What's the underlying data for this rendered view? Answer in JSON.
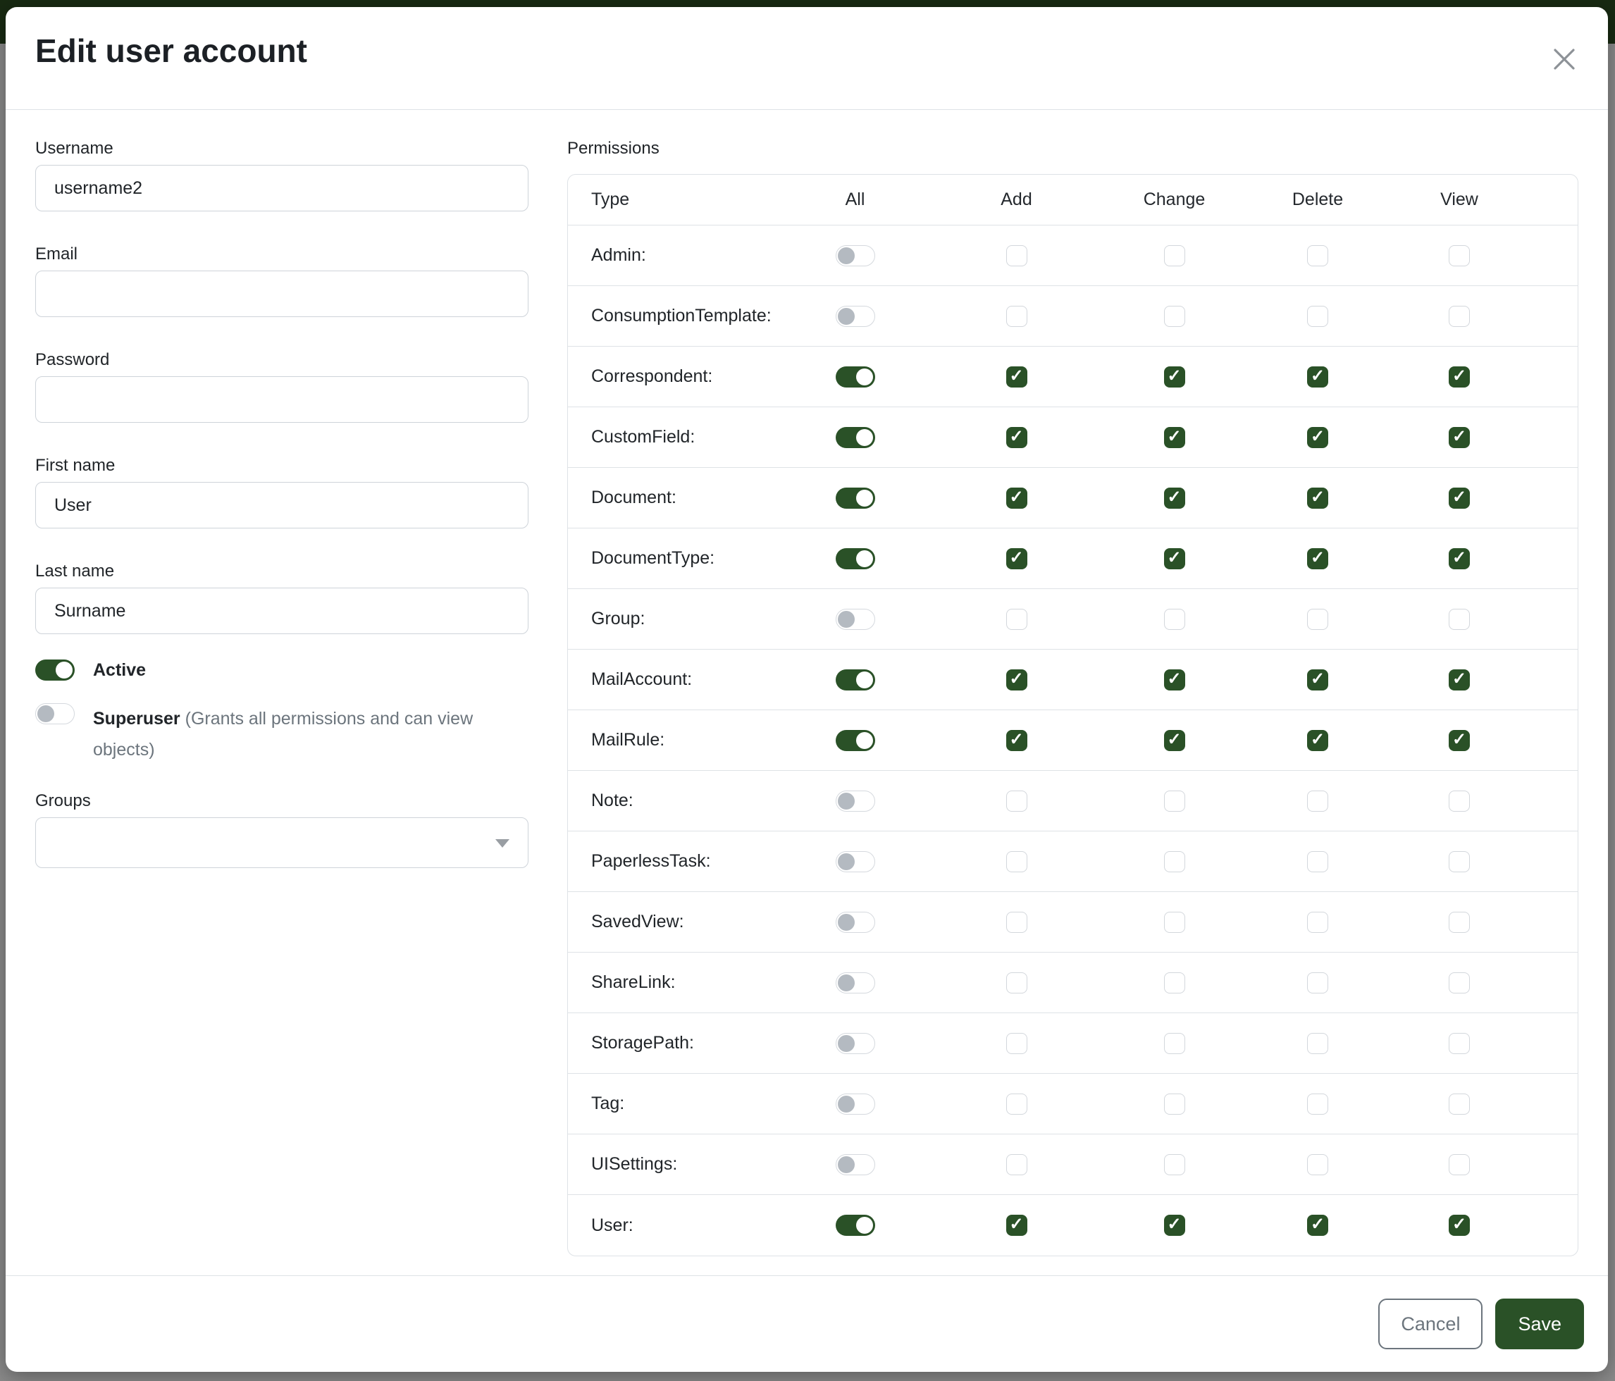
{
  "modal": {
    "title": "Edit user account"
  },
  "form": {
    "username": {
      "label": "Username",
      "value": "username2"
    },
    "email": {
      "label": "Email",
      "value": ""
    },
    "password": {
      "label": "Password",
      "value": ""
    },
    "first_name": {
      "label": "First name",
      "value": "User"
    },
    "last_name": {
      "label": "Last name",
      "value": "Surname"
    },
    "active": {
      "label": "Active",
      "enabled": true
    },
    "superuser": {
      "label": "Superuser",
      "hint": "(Grants all permissions and can view objects)",
      "enabled": false
    },
    "groups": {
      "label": "Groups",
      "value": ""
    }
  },
  "permissions": {
    "label": "Permissions",
    "columns": [
      "Type",
      "All",
      "Add",
      "Change",
      "Delete",
      "View"
    ],
    "rows": [
      {
        "type": "Admin:",
        "all": false,
        "add": false,
        "change": false,
        "delete": false,
        "view": false
      },
      {
        "type": "ConsumptionTemplate:",
        "all": false,
        "add": false,
        "change": false,
        "delete": false,
        "view": false
      },
      {
        "type": "Correspondent:",
        "all": true,
        "add": true,
        "change": true,
        "delete": true,
        "view": true
      },
      {
        "type": "CustomField:",
        "all": true,
        "add": true,
        "change": true,
        "delete": true,
        "view": true
      },
      {
        "type": "Document:",
        "all": true,
        "add": true,
        "change": true,
        "delete": true,
        "view": true
      },
      {
        "type": "DocumentType:",
        "all": true,
        "add": true,
        "change": true,
        "delete": true,
        "view": true
      },
      {
        "type": "Group:",
        "all": false,
        "add": false,
        "change": false,
        "delete": false,
        "view": false
      },
      {
        "type": "MailAccount:",
        "all": true,
        "add": true,
        "change": true,
        "delete": true,
        "view": true
      },
      {
        "type": "MailRule:",
        "all": true,
        "add": true,
        "change": true,
        "delete": true,
        "view": true
      },
      {
        "type": "Note:",
        "all": false,
        "add": false,
        "change": false,
        "delete": false,
        "view": false
      },
      {
        "type": "PaperlessTask:",
        "all": false,
        "add": false,
        "change": false,
        "delete": false,
        "view": false
      },
      {
        "type": "SavedView:",
        "all": false,
        "add": false,
        "change": false,
        "delete": false,
        "view": false
      },
      {
        "type": "ShareLink:",
        "all": false,
        "add": false,
        "change": false,
        "delete": false,
        "view": false
      },
      {
        "type": "StoragePath:",
        "all": false,
        "add": false,
        "change": false,
        "delete": false,
        "view": false
      },
      {
        "type": "Tag:",
        "all": false,
        "add": false,
        "change": false,
        "delete": false,
        "view": false
      },
      {
        "type": "UISettings:",
        "all": false,
        "add": false,
        "change": false,
        "delete": false,
        "view": false
      },
      {
        "type": "User:",
        "all": true,
        "add": true,
        "change": true,
        "delete": true,
        "view": true
      }
    ]
  },
  "footer": {
    "cancel_label": "Cancel",
    "save_label": "Save"
  },
  "colors": {
    "primary_green": "#2a5127",
    "header_band": "#182a12",
    "backdrop": "#8a8a8a"
  }
}
